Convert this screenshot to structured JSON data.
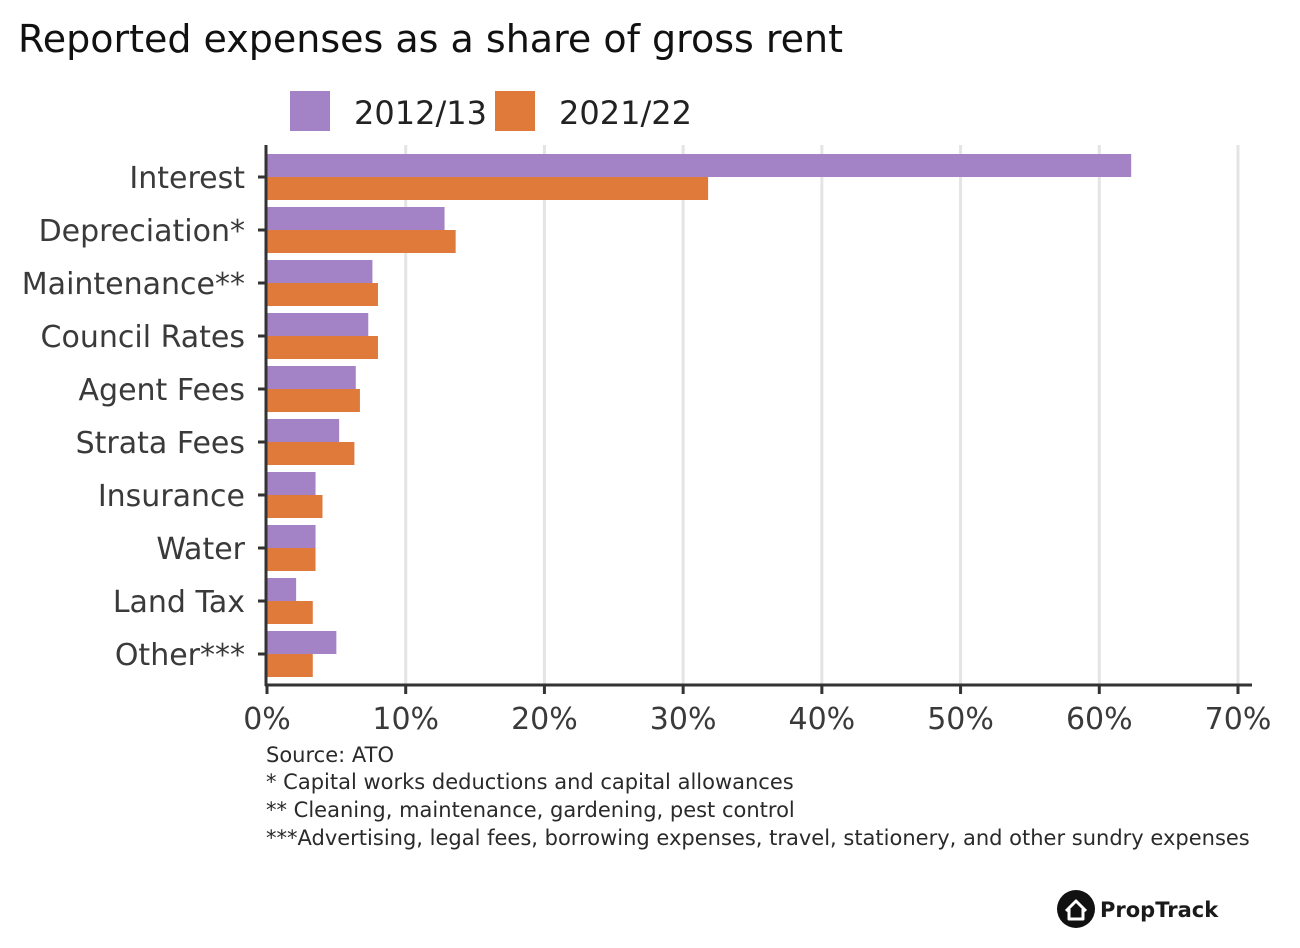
{
  "chart_data": {
    "type": "bar",
    "orientation": "horizontal",
    "title": "Reported expenses as a share of gross rent",
    "categories": [
      "Interest",
      "Depreciation*",
      "Maintenance**",
      "Council Rates",
      "Agent Fees",
      "Strata Fees",
      "Insurance",
      "Water",
      "Land Tax",
      "Other***"
    ],
    "series": [
      {
        "name": "2012/13",
        "color": "#a482c6",
        "values": [
          62.3,
          12.8,
          7.6,
          7.3,
          6.4,
          5.2,
          3.5,
          3.5,
          2.1,
          5.0
        ]
      },
      {
        "name": "2021/22",
        "color": "#e07a3a",
        "values": [
          31.8,
          13.6,
          8.0,
          8.0,
          6.7,
          6.3,
          4.0,
          3.5,
          3.3,
          3.3
        ]
      }
    ],
    "xlim": [
      0,
      70
    ],
    "xticks": [
      0,
      10,
      20,
      30,
      40,
      50,
      60,
      70
    ],
    "xtick_labels": [
      "0%",
      "10%",
      "20%",
      "30%",
      "40%",
      "50%",
      "60%",
      "70%"
    ],
    "grid": "vertical",
    "legend_position": "top"
  },
  "notes": [
    "Source: ATO",
    "* Capital works deductions and capital allowances",
    "** Cleaning, maintenance, gardening, pest control",
    "***Advertising, legal fees, borrowing expenses, travel, stationery, and other sundry expenses"
  ],
  "brand": {
    "name": "PropTrack",
    "icon": "house-icon"
  }
}
